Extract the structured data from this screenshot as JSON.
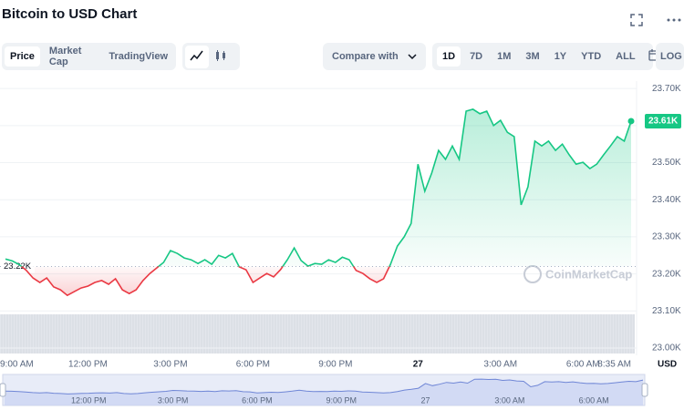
{
  "header": {
    "title": "Bitcoin to USD Chart"
  },
  "toolbar": {
    "tabs": [
      "Price",
      "Market Cap",
      "TradingView"
    ],
    "compare": "Compare with",
    "ranges": [
      "1D",
      "7D",
      "1M",
      "3M",
      "1Y",
      "YTD",
      "ALL"
    ],
    "log": "LOG"
  },
  "chart_data": {
    "type": "line",
    "categories": [
      "9:00 AM",
      null,
      null,
      null,
      null,
      null,
      null,
      null,
      null,
      null,
      null,
      null,
      "12:00 PM",
      null,
      null,
      null,
      null,
      null,
      null,
      null,
      null,
      null,
      null,
      null,
      "3:00 PM",
      null,
      null,
      null,
      null,
      null,
      null,
      null,
      null,
      null,
      null,
      null,
      "6:00 PM",
      null,
      null,
      null,
      null,
      null,
      null,
      null,
      null,
      null,
      null,
      null,
      "9:00 PM",
      null,
      null,
      null,
      null,
      null,
      null,
      null,
      null,
      null,
      null,
      null,
      "27",
      null,
      null,
      null,
      null,
      null,
      null,
      null,
      null,
      null,
      null,
      null,
      "3:00 AM",
      null,
      null,
      null,
      null,
      null,
      null,
      null,
      null,
      null,
      null,
      null,
      "6:00 AM",
      null,
      null,
      null,
      null,
      null,
      null,
      "8:35 AM"
    ],
    "values": [
      23240,
      23235,
      23225,
      23210,
      23189,
      23177,
      23189,
      23165,
      23157,
      23142,
      23152,
      23162,
      23167,
      23177,
      23182,
      23172,
      23187,
      23157,
      23147,
      23157,
      23182,
      23201,
      23216,
      23231,
      23263,
      23255,
      23243,
      23238,
      23228,
      23238,
      23226,
      23250,
      23243,
      23255,
      23219,
      23211,
      23177,
      23189,
      23201,
      23192,
      23211,
      23238,
      23270,
      23236,
      23221,
      23228,
      23226,
      23238,
      23231,
      23245,
      23238,
      23209,
      23201,
      23187,
      23177,
      23187,
      23226,
      23275,
      23300,
      23336,
      23496,
      23423,
      23472,
      23533,
      23509,
      23545,
      23509,
      23639,
      23644,
      23632,
      23639,
      23600,
      23614,
      23582,
      23570,
      23386,
      23435,
      23558,
      23545,
      23558,
      23533,
      23550,
      23521,
      23496,
      23501,
      23484,
      23496,
      23521,
      23545,
      23570,
      23558,
      23612
    ],
    "up_color": "#16c784",
    "down_color": "#ea3943",
    "ylim": [
      23000,
      23720
    ],
    "yticks": [
      {
        "value": 23000,
        "label": "23.00K"
      },
      {
        "value": 23100,
        "label": "23.10K"
      },
      {
        "value": 23200,
        "label": "23.20K"
      },
      {
        "value": 23300,
        "label": "23.30K"
      },
      {
        "value": 23400,
        "label": "23.40K"
      },
      {
        "value": 23500,
        "label": "23.50K"
      },
      {
        "value": 23600,
        "label": "23.60K"
      },
      {
        "value": 23700,
        "label": "23.70K"
      }
    ],
    "grid": true,
    "currency": "USD",
    "baseline": {
      "value": 23220,
      "label": "23.22K"
    },
    "current_price": {
      "value": 23612,
      "label": "23.61K"
    },
    "watermark": "CoinMarketCap"
  }
}
